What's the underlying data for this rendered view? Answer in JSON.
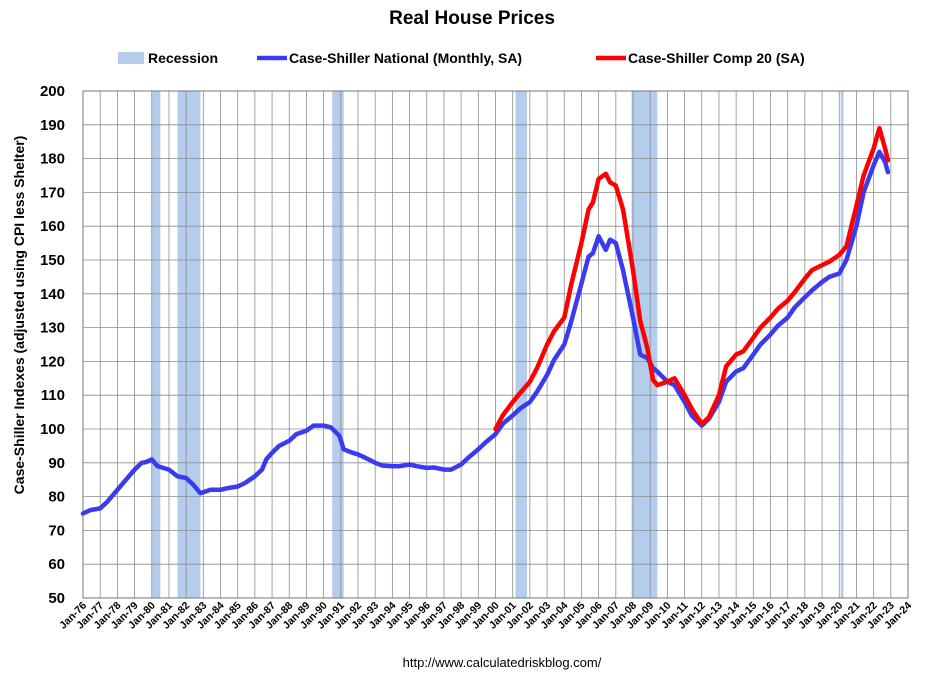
{
  "chart_data": {
    "type": "line",
    "title": "Real House Prices",
    "ylabel": "Case-Shiller Indexes (adjusted using CPI less Shelter)",
    "xlabel": "",
    "source": "http://www.calculatedriskblog.com/",
    "ylim": [
      50,
      200
    ],
    "y_ticks": [
      50,
      60,
      70,
      80,
      90,
      100,
      110,
      120,
      130,
      140,
      150,
      160,
      170,
      180,
      190,
      200
    ],
    "xlim": [
      "1976-01",
      "2024-01"
    ],
    "x_ticks": [
      "Jan-76",
      "Jan-77",
      "Jan-78",
      "Jan-79",
      "Jan-80",
      "Jan-81",
      "Jan-82",
      "Jan-83",
      "Jan-84",
      "Jan-85",
      "Jan-86",
      "Jan-87",
      "Jan-88",
      "Jan-89",
      "Jan-90",
      "Jan-91",
      "Jan-92",
      "Jan-93",
      "Jan-94",
      "Jan-95",
      "Jan-96",
      "Jan-97",
      "Jan-98",
      "Jan-99",
      "Jan-00",
      "Jan-01",
      "Jan-02",
      "Jan-03",
      "Jan-04",
      "Jan-05",
      "Jan-06",
      "Jan-07",
      "Jan-08",
      "Jan-09",
      "Jan-10",
      "Jan-11",
      "Jan-12",
      "Jan-13",
      "Jan-14",
      "Jan-15",
      "Jan-16",
      "Jan-17",
      "Jan-18",
      "Jan-19",
      "Jan-20",
      "Jan-21",
      "Jan-22",
      "Jan-23",
      "Jan-24"
    ],
    "grid": true,
    "legend_position": "top",
    "recessions": [
      {
        "start": "1980-01",
        "end": "1980-07"
      },
      {
        "start": "1981-07",
        "end": "1982-11"
      },
      {
        "start": "1990-07",
        "end": "1991-03"
      },
      {
        "start": "2001-03",
        "end": "2001-11"
      },
      {
        "start": "2007-12",
        "end": "2009-06"
      },
      {
        "start": "2020-02",
        "end": "2020-04"
      }
    ],
    "legend": [
      {
        "label": "Recession",
        "color": "#b4cdec"
      },
      {
        "label": "Case-Shiller National (Monthly, SA)",
        "color": "#3a3af0"
      },
      {
        "label": "Case-Shiller Comp 20  (SA)",
        "color": "#ff0000"
      }
    ],
    "series": [
      {
        "name": "Case-Shiller National (Monthly, SA)",
        "color": "#3a3af0",
        "points": [
          [
            "1976-01",
            75
          ],
          [
            "1976-06",
            76
          ],
          [
            "1977-01",
            76.5
          ],
          [
            "1977-06",
            78.5
          ],
          [
            "1978-01",
            82
          ],
          [
            "1978-06",
            84.5
          ],
          [
            "1979-01",
            88
          ],
          [
            "1979-06",
            90
          ],
          [
            "1979-09",
            90.2
          ],
          [
            "1980-01",
            91
          ],
          [
            "1980-05",
            89
          ],
          [
            "1981-01",
            88
          ],
          [
            "1981-07",
            86
          ],
          [
            "1982-01",
            85.5
          ],
          [
            "1982-06",
            83.5
          ],
          [
            "1982-11",
            81
          ],
          [
            "1983-06",
            82
          ],
          [
            "1984-01",
            82
          ],
          [
            "1984-06",
            82.5
          ],
          [
            "1985-01",
            83
          ],
          [
            "1985-06",
            84
          ],
          [
            "1986-01",
            86
          ],
          [
            "1986-06",
            88
          ],
          [
            "1986-09",
            91
          ],
          [
            "1987-01",
            93
          ],
          [
            "1987-06",
            95
          ],
          [
            "1988-01",
            96.5
          ],
          [
            "1988-06",
            98.5
          ],
          [
            "1989-01",
            99.5
          ],
          [
            "1989-06",
            101
          ],
          [
            "1990-01",
            101
          ],
          [
            "1990-06",
            100.5
          ],
          [
            "1990-12",
            98
          ],
          [
            "1991-03",
            94
          ],
          [
            "1991-09",
            93
          ],
          [
            "1992-01",
            92.5
          ],
          [
            "1992-06",
            91.5
          ],
          [
            "1993-01",
            90
          ],
          [
            "1993-06",
            89.2
          ],
          [
            "1994-01",
            89
          ],
          [
            "1994-06",
            89
          ],
          [
            "1995-01",
            89.5
          ],
          [
            "1995-06",
            89
          ],
          [
            "1996-01",
            88.5
          ],
          [
            "1996-06",
            88.6
          ],
          [
            "1997-01",
            88
          ],
          [
            "1997-06",
            88
          ],
          [
            "1998-01",
            89.5
          ],
          [
            "1998-06",
            91.5
          ],
          [
            "1999-01",
            94
          ],
          [
            "1999-06",
            96
          ],
          [
            "2000-01",
            98.5
          ],
          [
            "2000-06",
            101.5
          ],
          [
            "2001-01",
            104
          ],
          [
            "2001-06",
            106
          ],
          [
            "2002-01",
            108
          ],
          [
            "2002-06",
            111
          ],
          [
            "2003-01",
            116
          ],
          [
            "2003-06",
            120.5
          ],
          [
            "2004-01",
            125
          ],
          [
            "2004-06",
            132
          ],
          [
            "2005-01",
            143
          ],
          [
            "2005-06",
            151
          ],
          [
            "2005-09",
            152
          ],
          [
            "2006-01",
            157
          ],
          [
            "2006-06",
            153
          ],
          [
            "2006-09",
            156
          ],
          [
            "2007-01",
            155
          ],
          [
            "2007-06",
            147
          ],
          [
            "2008-01",
            133
          ],
          [
            "2008-06",
            122
          ],
          [
            "2008-11",
            121
          ],
          [
            "2009-03",
            118
          ],
          [
            "2009-06",
            117
          ],
          [
            "2010-01",
            114
          ],
          [
            "2010-06",
            113
          ],
          [
            "2011-01",
            108
          ],
          [
            "2011-06",
            104
          ],
          [
            "2012-01",
            101
          ],
          [
            "2012-06",
            103
          ],
          [
            "2013-01",
            108
          ],
          [
            "2013-06",
            114
          ],
          [
            "2014-01",
            117
          ],
          [
            "2014-06",
            118
          ],
          [
            "2015-01",
            122
          ],
          [
            "2015-06",
            125
          ],
          [
            "2016-01",
            128
          ],
          [
            "2016-06",
            130.5
          ],
          [
            "2017-01",
            133
          ],
          [
            "2017-06",
            136
          ],
          [
            "2018-01",
            139
          ],
          [
            "2018-06",
            141
          ],
          [
            "2019-01",
            143.5
          ],
          [
            "2019-06",
            145
          ],
          [
            "2020-01",
            146
          ],
          [
            "2020-06",
            150
          ],
          [
            "2021-01",
            160
          ],
          [
            "2021-06",
            170
          ],
          [
            "2022-01",
            178
          ],
          [
            "2022-05",
            182
          ],
          [
            "2022-09",
            179
          ],
          [
            "2022-11",
            176
          ]
        ]
      },
      {
        "name": "Case-Shiller Comp 20  (SA)",
        "color": "#ff0000",
        "points": [
          [
            "2000-01",
            100
          ],
          [
            "2000-06",
            104
          ],
          [
            "2001-01",
            108
          ],
          [
            "2001-06",
            110.5
          ],
          [
            "2002-01",
            114
          ],
          [
            "2002-06",
            118
          ],
          [
            "2003-01",
            125
          ],
          [
            "2003-06",
            129
          ],
          [
            "2004-01",
            133
          ],
          [
            "2004-06",
            143
          ],
          [
            "2005-01",
            155
          ],
          [
            "2005-06",
            165
          ],
          [
            "2005-09",
            167
          ],
          [
            "2006-01",
            174
          ],
          [
            "2006-06",
            175.5
          ],
          [
            "2006-09",
            173
          ],
          [
            "2007-01",
            172
          ],
          [
            "2007-06",
            165
          ],
          [
            "2008-01",
            147
          ],
          [
            "2008-06",
            132
          ],
          [
            "2008-11",
            124
          ],
          [
            "2009-03",
            114.5
          ],
          [
            "2009-06",
            113
          ],
          [
            "2010-01",
            114
          ],
          [
            "2010-06",
            115
          ],
          [
            "2011-01",
            110
          ],
          [
            "2011-06",
            106
          ],
          [
            "2012-01",
            101.5
          ],
          [
            "2012-06",
            103.5
          ],
          [
            "2013-01",
            110
          ],
          [
            "2013-06",
            118.5
          ],
          [
            "2014-01",
            122
          ],
          [
            "2014-06",
            123
          ],
          [
            "2015-01",
            127
          ],
          [
            "2015-06",
            130
          ],
          [
            "2016-01",
            133
          ],
          [
            "2016-06",
            135.5
          ],
          [
            "2017-01",
            138
          ],
          [
            "2017-06",
            140.5
          ],
          [
            "2018-01",
            144.5
          ],
          [
            "2018-06",
            147
          ],
          [
            "2019-01",
            148.5
          ],
          [
            "2019-06",
            149.5
          ],
          [
            "2020-01",
            151.5
          ],
          [
            "2020-06",
            154
          ],
          [
            "2021-01",
            166
          ],
          [
            "2021-06",
            175
          ],
          [
            "2022-01",
            183
          ],
          [
            "2022-05",
            189
          ],
          [
            "2022-09",
            183
          ],
          [
            "2022-11",
            179.5
          ]
        ]
      }
    ]
  }
}
